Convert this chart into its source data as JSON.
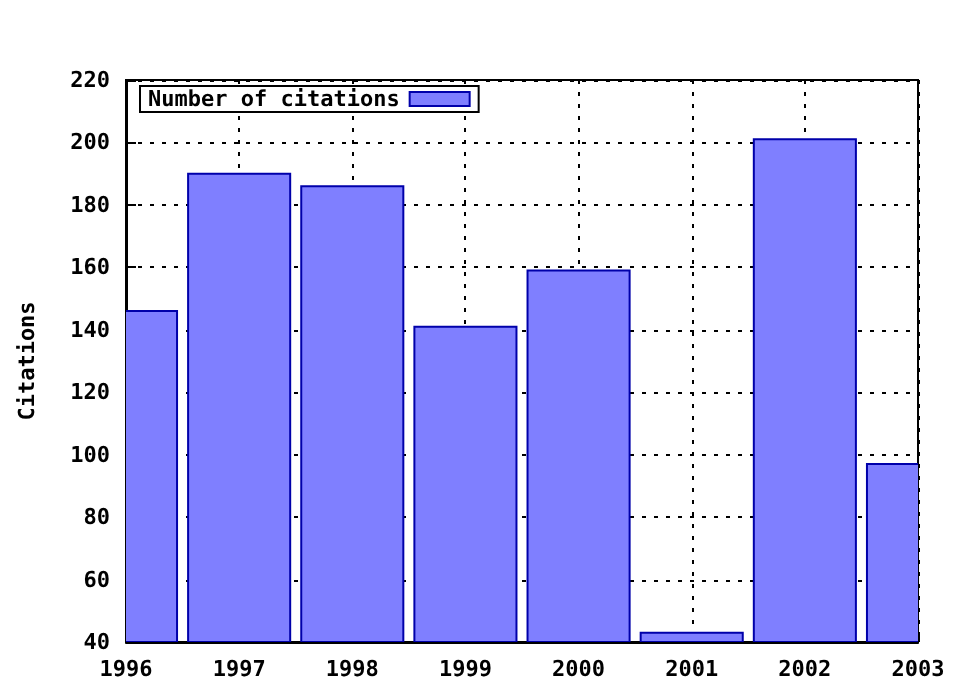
{
  "chart_data": {
    "type": "bar",
    "ylabel": "Citations",
    "x": [
      1996,
      1997,
      1998,
      1999,
      2000,
      2001,
      2002,
      2003
    ],
    "series": [
      {
        "name": "Number of citations",
        "color": "#7f7fff",
        "values": [
          146,
          190,
          186,
          141,
          159,
          43,
          201,
          97
        ]
      }
    ],
    "xlim": [
      1996,
      2003
    ],
    "xticks": [
      1996,
      1997,
      1998,
      1999,
      2000,
      2001,
      2002,
      2003
    ],
    "ylim": [
      40,
      220
    ],
    "yticks": [
      40,
      60,
      80,
      100,
      120,
      140,
      160,
      180,
      200,
      220
    ],
    "grid": true,
    "legend": "top left"
  }
}
